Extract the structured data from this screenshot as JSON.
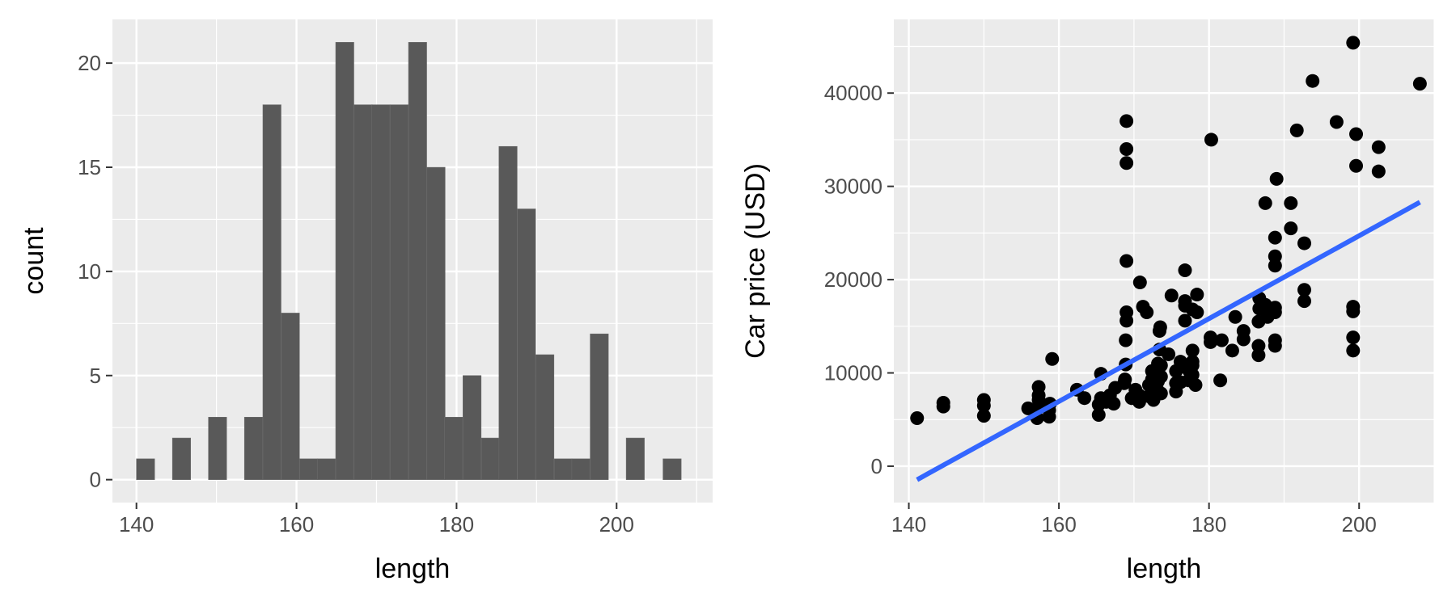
{
  "chart_data": [
    {
      "type": "bar",
      "subtype": "histogram",
      "xlabel": "length",
      "ylabel": "count",
      "xlim": [
        137,
        212
      ],
      "ylim": [
        -1.1,
        22.1
      ],
      "x_ticks": [
        140,
        160,
        180,
        200
      ],
      "y_ticks": [
        0,
        5,
        10,
        15,
        20
      ],
      "bin_width": 2.27,
      "bins": [
        {
          "start": 140.0,
          "count": 1
        },
        {
          "start": 144.5,
          "count": 2
        },
        {
          "start": 149.0,
          "count": 3
        },
        {
          "start": 153.5,
          "count": 3
        },
        {
          "start": 155.8,
          "count": 18
        },
        {
          "start": 158.1,
          "count": 8
        },
        {
          "start": 160.4,
          "count": 1
        },
        {
          "start": 162.6,
          "count": 1
        },
        {
          "start": 164.9,
          "count": 21
        },
        {
          "start": 167.2,
          "count": 18
        },
        {
          "start": 169.4,
          "count": 18
        },
        {
          "start": 171.7,
          "count": 18
        },
        {
          "start": 174.0,
          "count": 21
        },
        {
          "start": 176.3,
          "count": 15
        },
        {
          "start": 178.5,
          "count": 3
        },
        {
          "start": 180.8,
          "count": 5
        },
        {
          "start": 183.1,
          "count": 2
        },
        {
          "start": 185.3,
          "count": 16
        },
        {
          "start": 187.6,
          "count": 13
        },
        {
          "start": 189.9,
          "count": 6
        },
        {
          "start": 192.2,
          "count": 1
        },
        {
          "start": 194.4,
          "count": 1
        },
        {
          "start": 196.7,
          "count": 7
        },
        {
          "start": 201.2,
          "count": 2
        },
        {
          "start": 205.8,
          "count": 1
        }
      ],
      "grid": true,
      "colors": {
        "panel": "#ebebeb",
        "grid": "#ffffff",
        "bar": "#595959"
      }
    },
    {
      "type": "scatter",
      "xlabel": "length",
      "ylabel": "Car price (USD)",
      "xlim": [
        138,
        210
      ],
      "ylim": [
        -3900,
        47900
      ],
      "x_ticks": [
        140,
        160,
        180,
        200
      ],
      "y_ticks": [
        0,
        10000,
        20000,
        30000,
        40000
      ],
      "grid": true,
      "colors": {
        "panel": "#ebebeb",
        "grid": "#ffffff",
        "points": "#000000",
        "fit_line": "#3366ff"
      },
      "fit_line": {
        "x": [
          141.1,
          208.1
        ],
        "y": [
          -1450,
          28300
        ]
      },
      "points": [
        [
          141.1,
          5150
        ],
        [
          144.6,
          6400
        ],
        [
          144.6,
          6800
        ],
        [
          150.0,
          5400
        ],
        [
          150.0,
          6500
        ],
        [
          150.0,
          7100
        ],
        [
          155.9,
          6200
        ],
        [
          157.1,
          5150
        ],
        [
          157.3,
          6300
        ],
        [
          157.3,
          7100
        ],
        [
          157.3,
          7600
        ],
        [
          157.3,
          8500
        ],
        [
          158.7,
          5300
        ],
        [
          158.7,
          6000
        ],
        [
          158.8,
          6700
        ],
        [
          159.1,
          11500
        ],
        [
          162.4,
          8200
        ],
        [
          163.4,
          7300
        ],
        [
          165.3,
          5500
        ],
        [
          165.3,
          6600
        ],
        [
          165.6,
          7300
        ],
        [
          165.6,
          9900
        ],
        [
          166.3,
          6900
        ],
        [
          166.8,
          7600
        ],
        [
          167.3,
          6700
        ],
        [
          167.5,
          8400
        ],
        [
          168.7,
          8900
        ],
        [
          168.8,
          9300
        ],
        [
          168.9,
          10900
        ],
        [
          168.9,
          13500
        ],
        [
          169.0,
          15600
        ],
        [
          169.0,
          16500
        ],
        [
          169.0,
          22000
        ],
        [
          169.0,
          32500
        ],
        [
          169.0,
          34000
        ],
        [
          169.0,
          37000
        ],
        [
          169.7,
          7300
        ],
        [
          170.2,
          8200
        ],
        [
          170.7,
          6900
        ],
        [
          170.7,
          7600
        ],
        [
          170.8,
          19700
        ],
        [
          171.2,
          17100
        ],
        [
          171.7,
          16500
        ],
        [
          172.0,
          7500
        ],
        [
          172.0,
          8700
        ],
        [
          172.4,
          9300
        ],
        [
          172.4,
          10200
        ],
        [
          172.6,
          7100
        ],
        [
          172.6,
          7700
        ],
        [
          173.0,
          8500
        ],
        [
          173.2,
          9100
        ],
        [
          173.2,
          11000
        ],
        [
          173.4,
          12500
        ],
        [
          173.4,
          14500
        ],
        [
          173.5,
          14900
        ],
        [
          173.6,
          7800
        ],
        [
          173.6,
          9600
        ],
        [
          173.6,
          10800
        ],
        [
          174.6,
          12000
        ],
        [
          175.0,
          18300
        ],
        [
          175.6,
          8000
        ],
        [
          175.6,
          8900
        ],
        [
          175.6,
          10200
        ],
        [
          176.2,
          9000
        ],
        [
          176.2,
          11200
        ],
        [
          176.8,
          15600
        ],
        [
          176.8,
          17200
        ],
        [
          176.8,
          17700
        ],
        [
          176.8,
          21000
        ],
        [
          177.3,
          9200
        ],
        [
          177.3,
          10300
        ],
        [
          177.8,
          9800
        ],
        [
          177.8,
          10800
        ],
        [
          177.8,
          11200
        ],
        [
          177.8,
          12400
        ],
        [
          177.8,
          16800
        ],
        [
          178.2,
          8700
        ],
        [
          178.4,
          16500
        ],
        [
          178.4,
          18400
        ],
        [
          180.2,
          13300
        ],
        [
          180.2,
          13800
        ],
        [
          180.3,
          35000
        ],
        [
          181.5,
          9200
        ],
        [
          181.7,
          13500
        ],
        [
          183.1,
          12400
        ],
        [
          183.5,
          16000
        ],
        [
          184.6,
          13600
        ],
        [
          184.6,
          14500
        ],
        [
          186.6,
          11900
        ],
        [
          186.6,
          12900
        ],
        [
          186.6,
          15500
        ],
        [
          186.7,
          16900
        ],
        [
          186.7,
          18000
        ],
        [
          187.5,
          17300
        ],
        [
          187.5,
          28200
        ],
        [
          187.8,
          16000
        ],
        [
          188.8,
          12900
        ],
        [
          188.8,
          13500
        ],
        [
          188.8,
          16500
        ],
        [
          188.8,
          17000
        ],
        [
          188.8,
          21500
        ],
        [
          188.8,
          22500
        ],
        [
          188.8,
          24500
        ],
        [
          189.0,
          30800
        ],
        [
          190.9,
          25500
        ],
        [
          190.9,
          28200
        ],
        [
          191.7,
          36000
        ],
        [
          192.7,
          17700
        ],
        [
          192.7,
          18900
        ],
        [
          192.7,
          23900
        ],
        [
          193.8,
          41300
        ],
        [
          197.0,
          36900
        ],
        [
          199.2,
          12400
        ],
        [
          199.2,
          13800
        ],
        [
          199.2,
          16600
        ],
        [
          199.2,
          17100
        ],
        [
          199.2,
          45400
        ],
        [
          199.6,
          32200
        ],
        [
          199.6,
          35600
        ],
        [
          202.6,
          31600
        ],
        [
          202.6,
          34200
        ],
        [
          208.1,
          41000
        ]
      ]
    }
  ]
}
